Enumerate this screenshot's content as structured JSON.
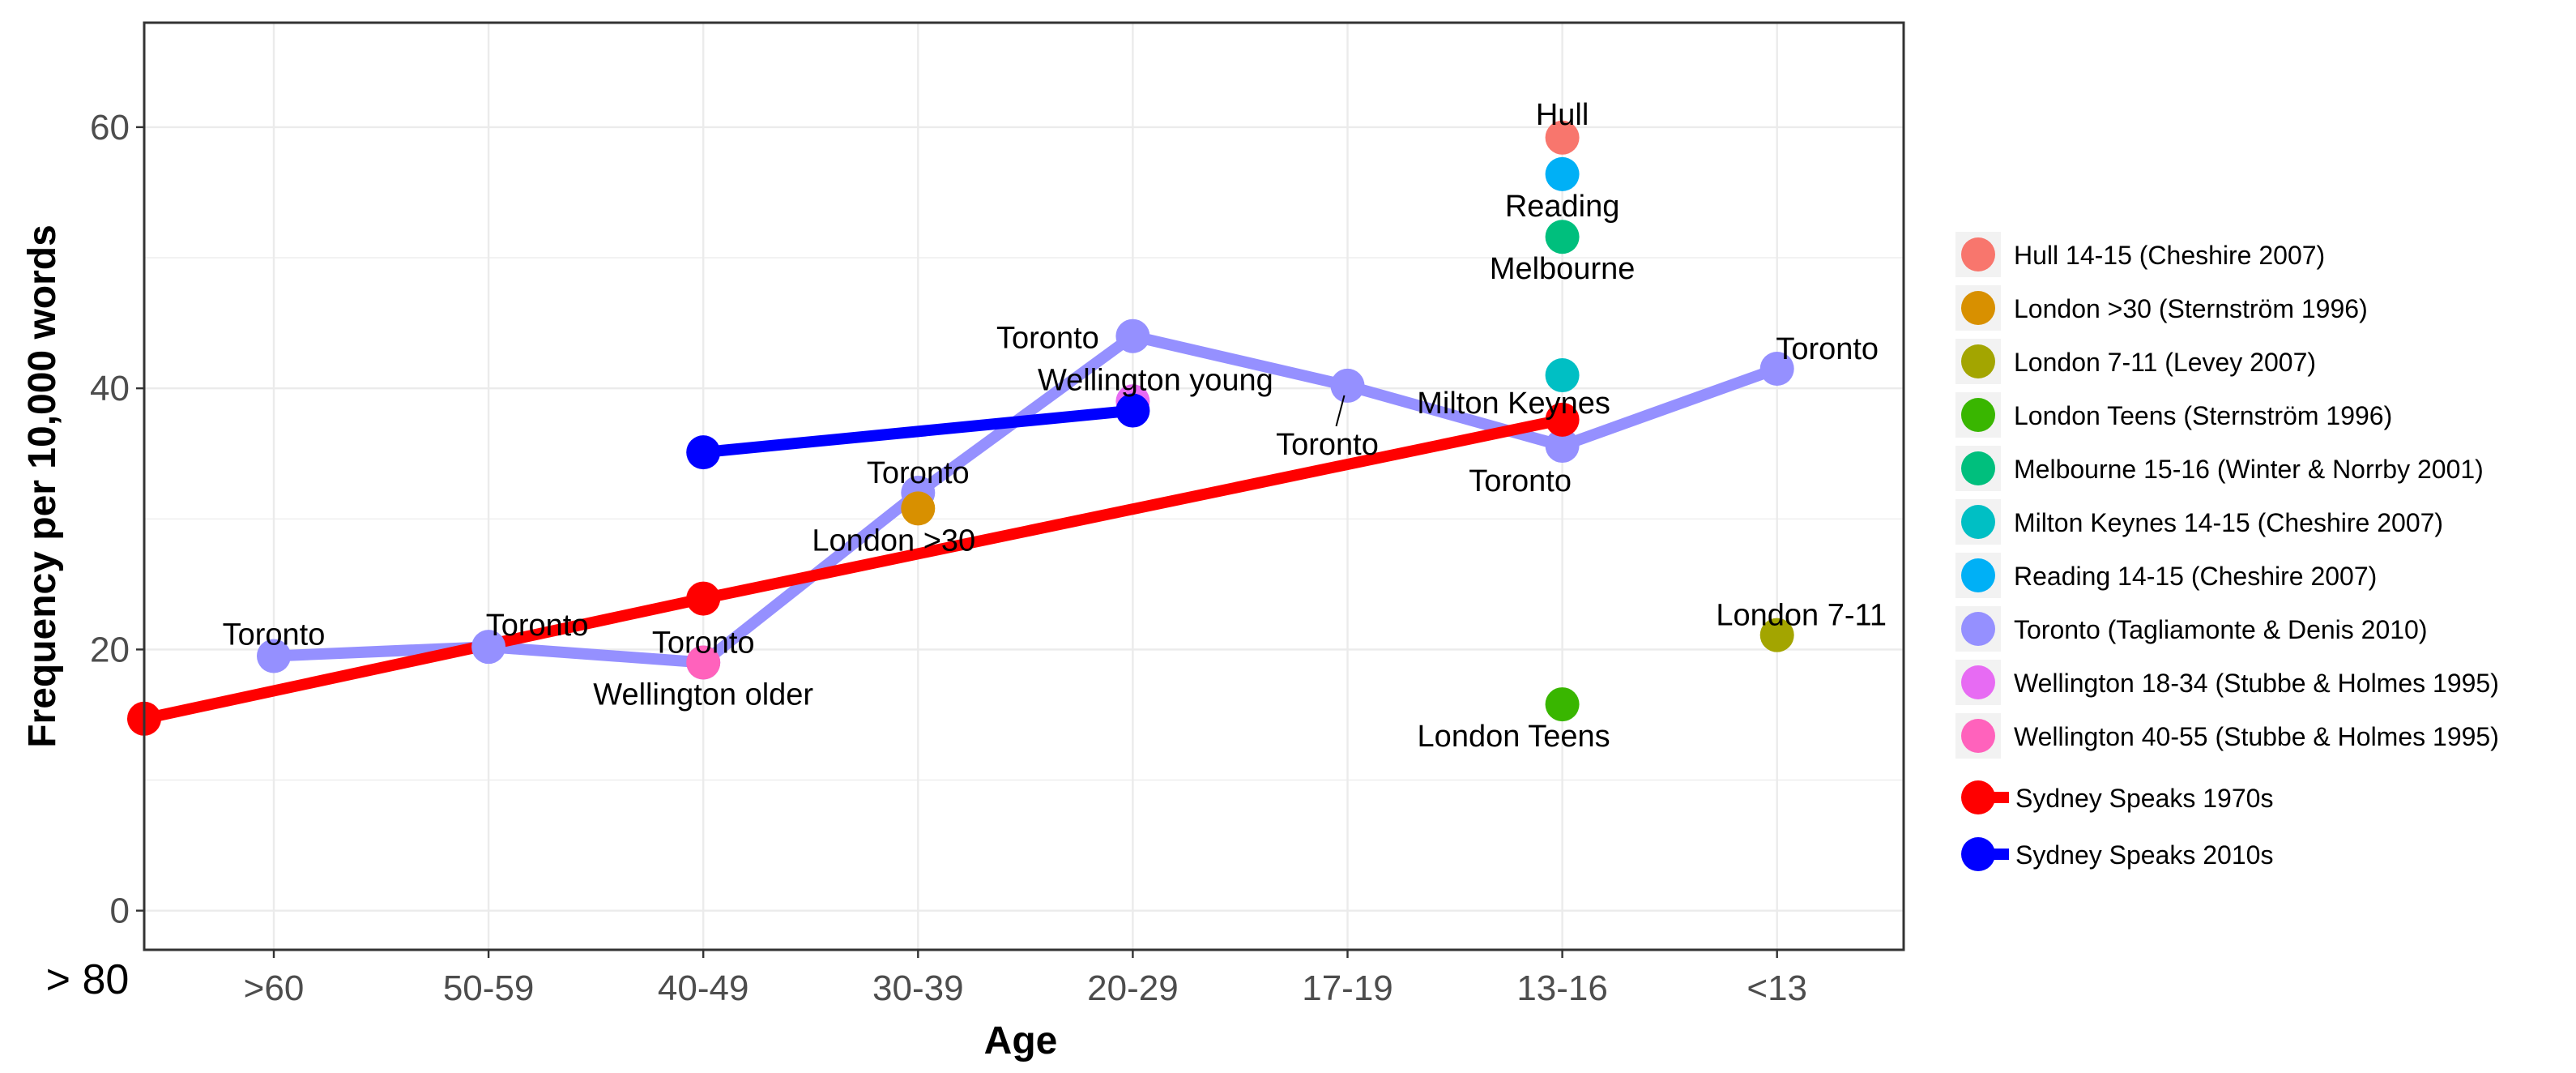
{
  "chart_data": {
    "type": "line",
    "xlabel": "Age",
    "ylabel": "Frequency per 10,000 words",
    "categories": [
      ">60",
      "50-59",
      "40-49",
      "30-39",
      "20-29",
      "17-19",
      "13-16",
      "<13"
    ],
    "first_label": "> 80",
    "ylim": [
      -3,
      68
    ],
    "yticks": [
      0,
      20,
      40,
      60
    ],
    "grid": true,
    "legend_position": "right",
    "scatter_series": [
      {
        "name": "Hull 14-15 (Cheshire 2007)",
        "color": "#F8766D",
        "points": [
          {
            "x": "13-16",
            "y": 59.2,
            "label": "Hull"
          }
        ]
      },
      {
        "name": "London >30 (Sternström 1996)",
        "color": "#D89000",
        "points": [
          {
            "x": "30-39",
            "y": 30.8,
            "label": "London >30"
          }
        ]
      },
      {
        "name": "London 7-11 (Levey 2007)",
        "color": "#A3A500",
        "points": [
          {
            "x": "<13",
            "y": 21.1,
            "label": "London 7-11"
          }
        ]
      },
      {
        "name": "London Teens (Sternström 1996)",
        "color": "#39B600",
        "points": [
          {
            "x": "13-16",
            "y": 15.8,
            "label": "London Teens"
          }
        ]
      },
      {
        "name": "Melbourne 15-16 (Winter & Norrby 2001)",
        "color": "#00BF7D",
        "points": [
          {
            "x": "13-16",
            "y": 51.6,
            "label": "Melbourne"
          }
        ]
      },
      {
        "name": "Milton Keynes 14-15 (Cheshire 2007)",
        "color": "#00BFC4",
        "points": [
          {
            "x": "13-16",
            "y": 41.0,
            "label": "Milton Keynes"
          }
        ]
      },
      {
        "name": "Reading 14-15 (Cheshire 2007)",
        "color": "#00B0F6",
        "points": [
          {
            "x": "13-16",
            "y": 56.4,
            "label": "Reading"
          }
        ]
      },
      {
        "name": "Toronto (Tagliamonte & Denis 2010)",
        "color": "#9590FF",
        "points": [
          {
            "x": ">60",
            "y": 19.5,
            "label": "Toronto"
          },
          {
            "x": "50-59",
            "y": 20.2,
            "label": "Toronto"
          },
          {
            "x": "40-49",
            "y": 19.0,
            "label": "Toronto"
          },
          {
            "x": "30-39",
            "y": 32.0,
            "label": "Toronto"
          },
          {
            "x": "20-29",
            "y": 44.0,
            "label": "Toronto"
          },
          {
            "x": "17-19",
            "y": 40.2,
            "label": "Toronto"
          },
          {
            "x": "13-16",
            "y": 35.6,
            "label": "Toronto"
          },
          {
            "x": "<13",
            "y": 41.5,
            "label": "Toronto"
          }
        ]
      },
      {
        "name": "Wellington 18-34 (Stubbe & Holmes 1995)",
        "color": "#E76BF3",
        "points": [
          {
            "x": "20-29",
            "y": 39.0,
            "label": "Wellington young"
          }
        ]
      },
      {
        "name": "Wellington 40-55 (Stubbe & Holmes 1995)",
        "color": "#FF62BC",
        "points": [
          {
            "x": "40-49",
            "y": 19.0,
            "label": "Wellington older"
          }
        ]
      }
    ],
    "line_series": [
      {
        "name": "Sydney Speaks 1970s",
        "color": "#FF0000",
        "points": [
          {
            "x": "> 80",
            "y": 14.7
          },
          {
            "x": "40-49",
            "y": 23.9
          },
          {
            "x": "13-16",
            "y": 37.6
          }
        ]
      },
      {
        "name": "Sydney Speaks 2010s",
        "color": "#0000FF",
        "points": [
          {
            "x": "40-49",
            "y": 35.1
          },
          {
            "x": "20-29",
            "y": 38.3
          }
        ]
      }
    ]
  }
}
